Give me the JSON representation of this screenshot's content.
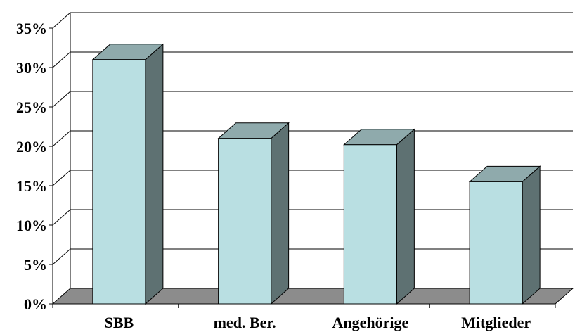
{
  "chart_data": {
    "type": "bar",
    "style": "3d-column",
    "categories": [
      "SBB",
      "med. Ber.",
      "Angehörige",
      "Mitglieder"
    ],
    "values": [
      31,
      21,
      20.2,
      15.5
    ],
    "ylim": [
      0,
      35
    ],
    "yticks": [
      "0%",
      "5%",
      "10%",
      "15%",
      "20%",
      "25%",
      "30%",
      "35%"
    ],
    "grid": true,
    "legend": "none",
    "colors": {
      "bar_front": "#b9dfe2",
      "bar_top": "#8faaac",
      "bar_side": "#5e7172",
      "floor": "#8c8c8c",
      "grid": "#000000"
    }
  }
}
